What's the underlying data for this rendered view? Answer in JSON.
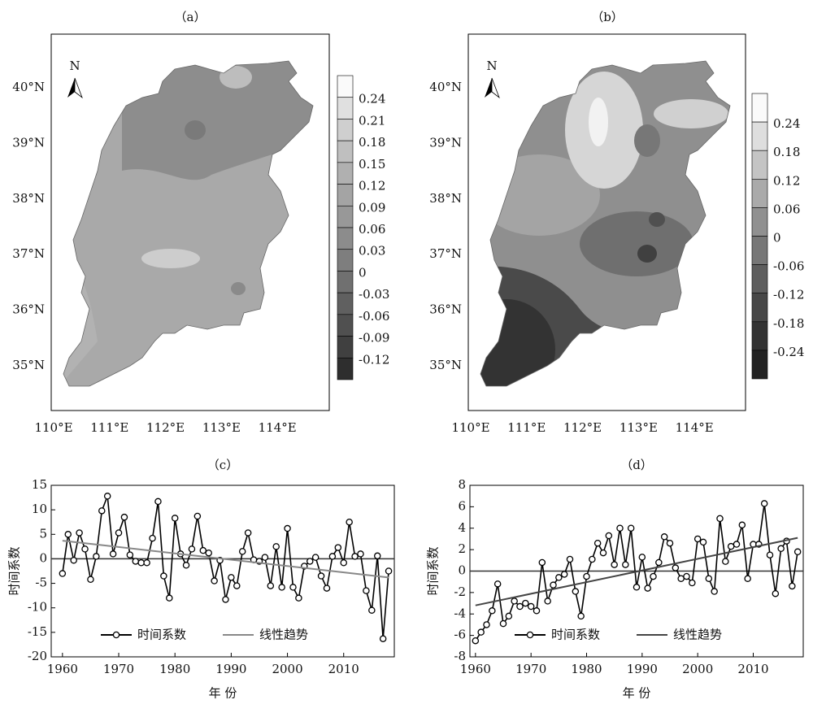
{
  "maps": [
    {
      "label": "（a）",
      "north": "N",
      "lat_labels": [
        "40°N",
        "39°N",
        "38°N",
        "37°N",
        "36°N",
        "35°N"
      ],
      "lon_labels": [
        "110°E",
        "111°E",
        "112°E",
        "113°E",
        "114°E"
      ],
      "legend": {
        "ticks": [
          0.24,
          0.21,
          0.18,
          0.15,
          0.12,
          0.09,
          0.06,
          0.03,
          0,
          -0.03,
          -0.06,
          -0.09,
          -0.12
        ],
        "colors": [
          "#fafafa",
          "#e0e0e0",
          "#cfcfcf",
          "#bfbfbf",
          "#b0b0b0",
          "#a4a4a4",
          "#989898",
          "#8c8c8c",
          "#7e7e7e",
          "#707070",
          "#606060",
          "#505050",
          "#404040",
          "#2e2e2e"
        ]
      }
    },
    {
      "label": "（b）",
      "north": "N",
      "lat_labels": [
        "40°N",
        "39°N",
        "38°N",
        "37°N",
        "36°N",
        "35°N"
      ],
      "lon_labels": [
        "110°E",
        "111°E",
        "112°E",
        "113°E",
        "114°E"
      ],
      "legend": {
        "ticks": [
          0.24,
          0.18,
          0.12,
          0.06,
          0,
          -0.06,
          -0.12,
          -0.18,
          -0.24
        ],
        "colors": [
          "#fafafa",
          "#dedede",
          "#c4c4c4",
          "#aaaaaa",
          "#909090",
          "#777777",
          "#5e5e5e",
          "#474747",
          "#333333",
          "#222222"
        ]
      }
    }
  ],
  "chart_data": [
    {
      "type": "line",
      "title": "（c）",
      "xlabel": "年  份",
      "ylabel": "时间系数",
      "x": [
        1960,
        1961,
        1962,
        1963,
        1964,
        1965,
        1966,
        1967,
        1968,
        1969,
        1970,
        1971,
        1972,
        1973,
        1974,
        1975,
        1976,
        1977,
        1978,
        1979,
        1980,
        1981,
        1982,
        1983,
        1984,
        1985,
        1986,
        1987,
        1988,
        1989,
        1990,
        1991,
        1992,
        1993,
        1994,
        1995,
        1996,
        1997,
        1998,
        1999,
        2000,
        2001,
        2002,
        2003,
        2004,
        2005,
        2006,
        2007,
        2008,
        2009,
        2010,
        2011,
        2012,
        2013,
        2014,
        2015,
        2016,
        2017,
        2018
      ],
      "xlim": [
        1958,
        2019
      ],
      "xticks": [
        1960,
        1970,
        1980,
        1990,
        2000,
        2010
      ],
      "ylim": [
        -20,
        15
      ],
      "yticks": [
        -20,
        -15,
        -10,
        -5,
        0,
        5,
        10,
        15
      ],
      "hline": 0,
      "legend": "lower center",
      "series": [
        {
          "name": "时间系数",
          "color": "#000000",
          "marker": true,
          "values": [
            -3,
            5,
            -0.3,
            5.3,
            2,
            -4.2,
            0.5,
            9.8,
            12.8,
            1,
            5.3,
            8.5,
            0.8,
            -0.5,
            -0.8,
            -0.8,
            4.2,
            11.7,
            -3.5,
            -8,
            8.3,
            1,
            -1.3,
            2,
            8.7,
            1.7,
            1.2,
            -4.5,
            -0.3,
            -8.3,
            -3.8,
            -5.5,
            1.5,
            5.3,
            -0.2,
            -0.5,
            0.3,
            -5.5,
            2.5,
            -5.8,
            6.2,
            -5.8,
            -8,
            -1.5,
            -0.5,
            0.3,
            -3.5,
            -6,
            0.5,
            2.3,
            -0.8,
            7.5,
            0.5,
            1,
            -6.5,
            -10.5,
            0.6,
            -16.3,
            -2.5
          ]
        },
        {
          "name": "线性趋势",
          "color": "#888888",
          "marker": false,
          "x": [
            1960,
            2018
          ],
          "values": [
            3.7,
            -3.8
          ]
        }
      ]
    },
    {
      "type": "line",
      "title": "（d）",
      "xlabel": "年  份",
      "ylabel": "时间系数",
      "x": [
        1960,
        1961,
        1962,
        1963,
        1964,
        1965,
        1966,
        1967,
        1968,
        1969,
        1970,
        1971,
        1972,
        1973,
        1974,
        1975,
        1976,
        1977,
        1978,
        1979,
        1980,
        1981,
        1982,
        1983,
        1984,
        1985,
        1986,
        1987,
        1988,
        1989,
        1990,
        1991,
        1992,
        1993,
        1994,
        1995,
        1996,
        1997,
        1998,
        1999,
        2000,
        2001,
        2002,
        2003,
        2004,
        2005,
        2006,
        2007,
        2008,
        2009,
        2010,
        2011,
        2012,
        2013,
        2014,
        2015,
        2016,
        2017,
        2018
      ],
      "xlim": [
        1959,
        2019
      ],
      "xticks": [
        1960,
        1970,
        1980,
        1990,
        2000,
        2010
      ],
      "ylim": [
        -8,
        8
      ],
      "yticks": [
        -8,
        -6,
        -4,
        -2,
        0,
        2,
        4,
        6,
        8
      ],
      "hline": 0,
      "legend": "lower center",
      "series": [
        {
          "name": "时间系数",
          "color": "#000000",
          "marker": true,
          "values": [
            -6.5,
            -5.7,
            -5,
            -3.7,
            -1.2,
            -4.9,
            -4.2,
            -2.8,
            -3.3,
            -3,
            -3.3,
            -3.7,
            0.8,
            -2.8,
            -1.3,
            -0.6,
            -0.3,
            1.1,
            -1.9,
            -4.2,
            -0.5,
            1.1,
            2.6,
            1.7,
            3.3,
            0.6,
            4,
            0.6,
            4,
            -1.5,
            1.3,
            -1.6,
            -0.5,
            0.8,
            3.2,
            2.6,
            0.3,
            -0.7,
            -0.5,
            -1.1,
            3,
            2.7,
            -0.7,
            -1.9,
            4.9,
            0.9,
            2.3,
            2.5,
            4.3,
            -0.7,
            2.5,
            2.5,
            6.3,
            1.5,
            -2.1,
            2.1,
            2.8,
            -1.4,
            1.8
          ]
        },
        {
          "name": "线性趋势",
          "color": "#444444",
          "marker": false,
          "x": [
            1960,
            2018
          ],
          "values": [
            -3.2,
            3.1
          ]
        }
      ]
    }
  ]
}
